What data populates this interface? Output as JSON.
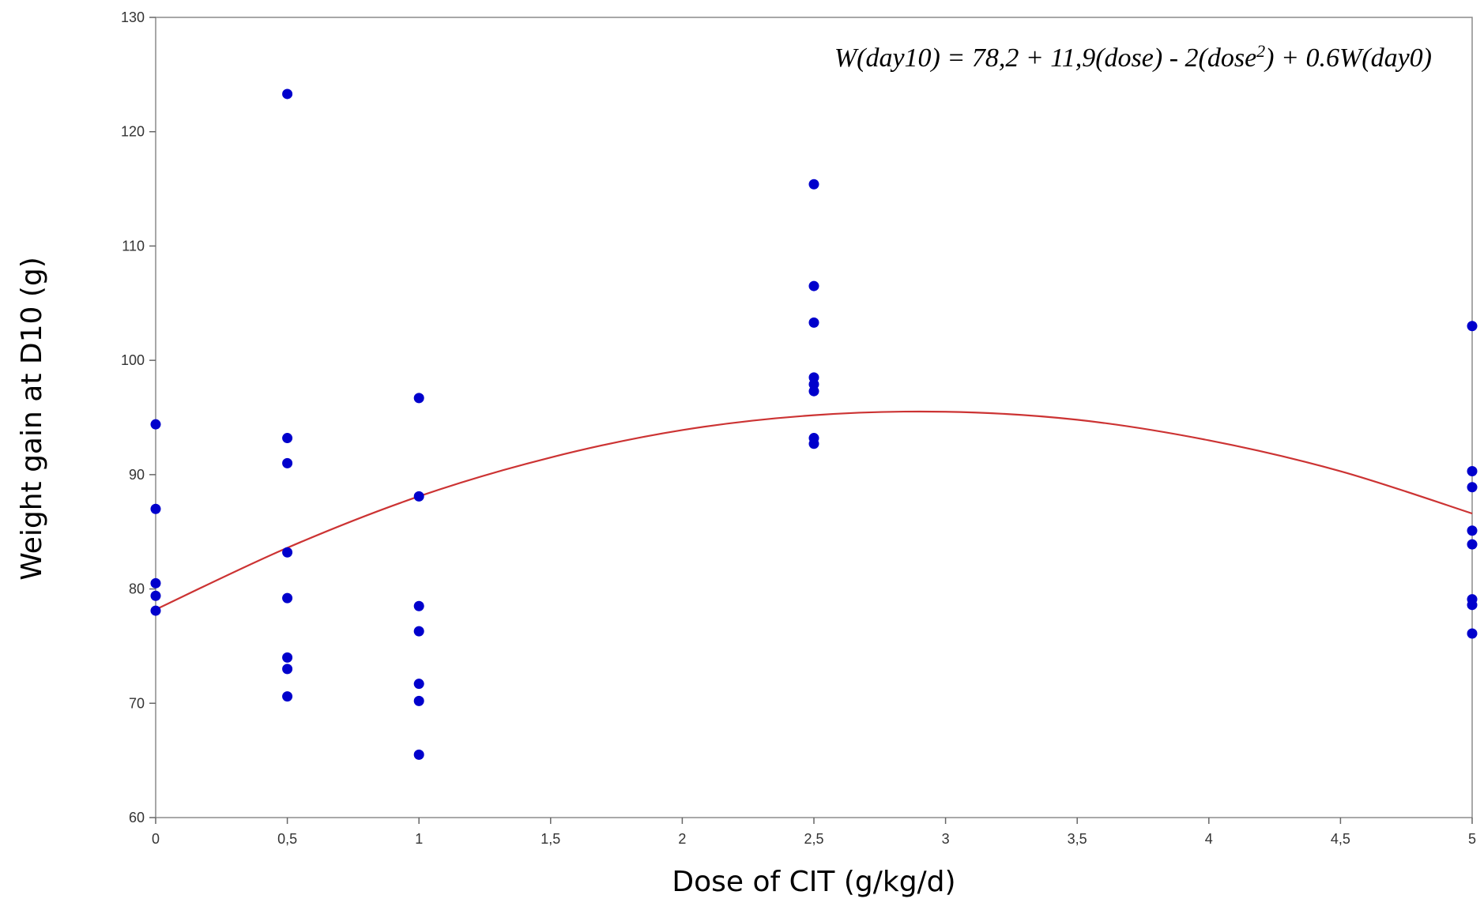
{
  "chart_data": {
    "type": "scatter",
    "xlabel": "Dose of CIT (g/kg/d)",
    "ylabel": "Weight gain at D10 (g)",
    "xlim": [
      0,
      5
    ],
    "ylim": [
      60,
      130
    ],
    "x_ticks": [
      0,
      0.5,
      1,
      1.5,
      2,
      2.5,
      3,
      3.5,
      4,
      4.5,
      5
    ],
    "x_tick_labels": [
      "0",
      "0,5",
      "1",
      "1,5",
      "2",
      "2,5",
      "3",
      "3,5",
      "4",
      "4,5",
      "5"
    ],
    "y_ticks": [
      60,
      70,
      80,
      90,
      100,
      110,
      120,
      130
    ],
    "y_tick_labels": [
      "60",
      "70",
      "80",
      "90",
      "100",
      "110",
      "120",
      "130"
    ],
    "grid": false,
    "annotation": {
      "prefix": "W(day10) = 78,2 + 11,9(dose) - 2(dose",
      "superscript": "2",
      "suffix": ") + 0.6W(day0)",
      "position": "top-right"
    },
    "series": [
      {
        "type": "scatter",
        "color": "#0000cc",
        "points": [
          {
            "x": 0,
            "y": 94.4
          },
          {
            "x": 0,
            "y": 87.0
          },
          {
            "x": 0,
            "y": 80.5
          },
          {
            "x": 0,
            "y": 79.4
          },
          {
            "x": 0,
            "y": 78.1
          },
          {
            "x": 0.5,
            "y": 123.3
          },
          {
            "x": 0.5,
            "y": 93.2
          },
          {
            "x": 0.5,
            "y": 91.0
          },
          {
            "x": 0.5,
            "y": 83.2
          },
          {
            "x": 0.5,
            "y": 79.2
          },
          {
            "x": 0.5,
            "y": 74.0
          },
          {
            "x": 0.5,
            "y": 73.0
          },
          {
            "x": 0.5,
            "y": 70.6
          },
          {
            "x": 1,
            "y": 96.7
          },
          {
            "x": 1,
            "y": 88.1
          },
          {
            "x": 1,
            "y": 78.5
          },
          {
            "x": 1,
            "y": 76.3
          },
          {
            "x": 1,
            "y": 71.7
          },
          {
            "x": 1,
            "y": 70.2
          },
          {
            "x": 1,
            "y": 65.5
          },
          {
            "x": 2.5,
            "y": 115.4
          },
          {
            "x": 2.5,
            "y": 106.5
          },
          {
            "x": 2.5,
            "y": 103.3
          },
          {
            "x": 2.5,
            "y": 98.5
          },
          {
            "x": 2.5,
            "y": 97.9
          },
          {
            "x": 2.5,
            "y": 97.3
          },
          {
            "x": 2.5,
            "y": 93.2
          },
          {
            "x": 2.5,
            "y": 92.7
          },
          {
            "x": 5,
            "y": 103.0
          },
          {
            "x": 5,
            "y": 90.3
          },
          {
            "x": 5,
            "y": 88.9
          },
          {
            "x": 5,
            "y": 85.1
          },
          {
            "x": 5,
            "y": 83.9
          },
          {
            "x": 5,
            "y": 79.1
          },
          {
            "x": 5,
            "y": 78.6
          },
          {
            "x": 5,
            "y": 76.1
          }
        ]
      },
      {
        "type": "line",
        "color": "#cc3333",
        "points": [
          {
            "x": 0,
            "y": 78.2
          },
          {
            "x": 0.5,
            "y": 83.6
          },
          {
            "x": 1,
            "y": 88.1
          },
          {
            "x": 1.5,
            "y": 91.5
          },
          {
            "x": 2,
            "y": 93.9
          },
          {
            "x": 2.5,
            "y": 95.2
          },
          {
            "x": 3,
            "y": 95.5
          },
          {
            "x": 3.5,
            "y": 94.8
          },
          {
            "x": 4,
            "y": 93.0
          },
          {
            "x": 4.5,
            "y": 90.3
          },
          {
            "x": 5,
            "y": 86.6
          }
        ]
      }
    ]
  }
}
